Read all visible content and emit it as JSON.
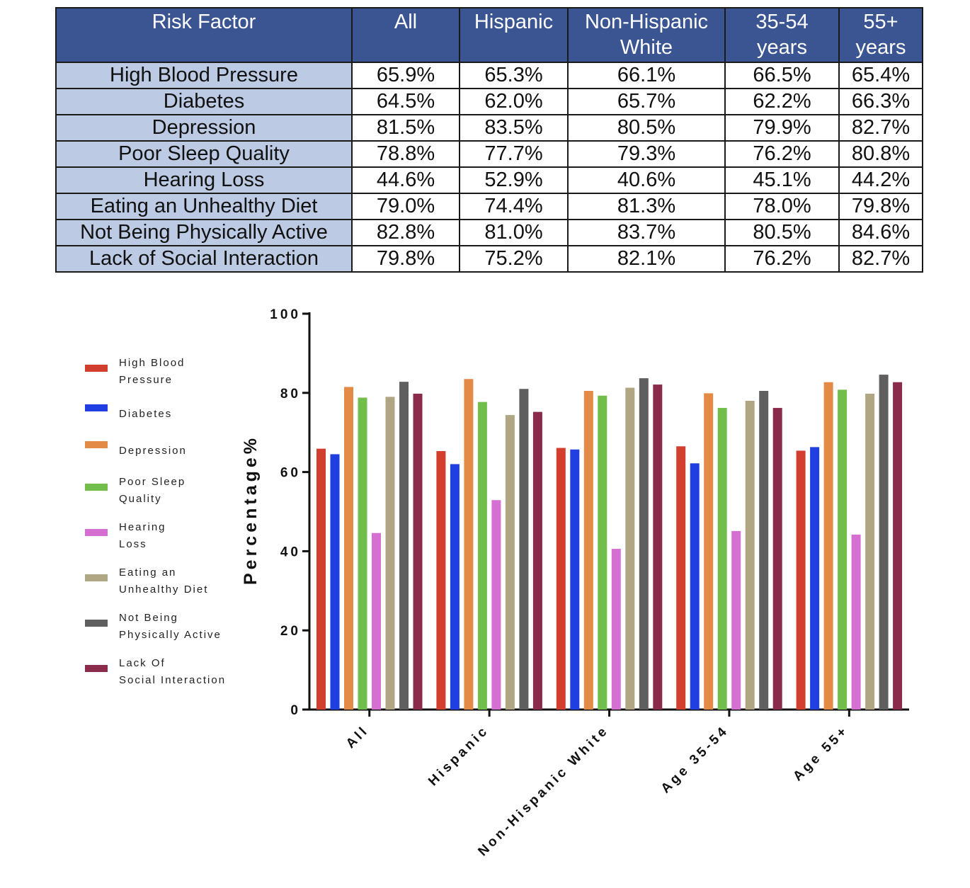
{
  "table": {
    "headers": [
      "Risk Factor",
      "All",
      "Hispanic",
      "Non-Hispanic\nWhite",
      "35-54\nyears",
      "55+\nyears"
    ],
    "rows": [
      {
        "factor": "High Blood Pressure",
        "values": [
          "65.9%",
          "65.3%",
          "66.1%",
          "66.5%",
          "65.4%"
        ]
      },
      {
        "factor": "Diabetes",
        "values": [
          "64.5%",
          "62.0%",
          "65.7%",
          "62.2%",
          "66.3%"
        ]
      },
      {
        "factor": "Depression",
        "values": [
          "81.5%",
          "83.5%",
          "80.5%",
          "79.9%",
          "82.7%"
        ]
      },
      {
        "factor": "Poor Sleep Quality",
        "values": [
          "78.8%",
          "77.7%",
          "79.3%",
          "76.2%",
          "80.8%"
        ]
      },
      {
        "factor": "Hearing Loss",
        "values": [
          "44.6%",
          "52.9%",
          "40.6%",
          "45.1%",
          "44.2%"
        ]
      },
      {
        "factor": "Eating an Unhealthy Diet",
        "values": [
          "79.0%",
          "74.4%",
          "81.3%",
          "78.0%",
          "79.8%"
        ]
      },
      {
        "factor": "Not Being Physically Active",
        "values": [
          "82.8%",
          "81.0%",
          "83.7%",
          "80.5%",
          "84.6%"
        ]
      },
      {
        "factor": "Lack of Social Interaction",
        "values": [
          "79.8%",
          "75.2%",
          "82.1%",
          "76.2%",
          "82.7%"
        ]
      }
    ]
  },
  "chart_data": {
    "type": "bar",
    "ylabel": "Percentage%",
    "ylim": [
      0,
      100
    ],
    "yticks": [
      0,
      20,
      40,
      60,
      80,
      100
    ],
    "grid": false,
    "legend_position": "left",
    "categories": [
      "All",
      "Hispanic",
      "Non-Hispanic White",
      "Age 35-54",
      "Age 55+"
    ],
    "series": [
      {
        "name": "High Blood Pressure",
        "legend_lines": [
          "High Blood",
          "Pressure"
        ],
        "color": "#d33f2f",
        "values": [
          65.9,
          65.3,
          66.1,
          66.5,
          65.4
        ]
      },
      {
        "name": "Diabetes",
        "legend_lines": [
          "Diabetes"
        ],
        "color": "#1f3fe0",
        "values": [
          64.5,
          62.0,
          65.7,
          62.2,
          66.3
        ]
      },
      {
        "name": "Depression",
        "legend_lines": [
          "Depression"
        ],
        "color": "#e38a47",
        "values": [
          81.5,
          83.5,
          80.5,
          79.9,
          82.7
        ]
      },
      {
        "name": "Poor Sleep Quality",
        "legend_lines": [
          "Poor Sleep",
          "Quality"
        ],
        "color": "#72be4d",
        "values": [
          78.8,
          77.7,
          79.3,
          76.2,
          80.8
        ]
      },
      {
        "name": "Hearing Loss",
        "legend_lines": [
          "Hearing",
          "Loss"
        ],
        "color": "#d56fd1",
        "values": [
          44.6,
          52.9,
          40.6,
          45.1,
          44.2
        ]
      },
      {
        "name": "Eating an Unhealthy Diet",
        "legend_lines": [
          "Eating an",
          "Unhealthy Diet"
        ],
        "color": "#b0a683",
        "values": [
          79.0,
          74.4,
          81.3,
          78.0,
          79.8
        ]
      },
      {
        "name": "Not Being Physically Active",
        "legend_lines": [
          "Not Being",
          "Physically Active"
        ],
        "color": "#5f5f5f",
        "values": [
          82.8,
          81.0,
          83.7,
          80.5,
          84.6
        ]
      },
      {
        "name": "Lack Of Social Interaction",
        "legend_lines": [
          "Lack Of",
          "Social Interaction"
        ],
        "color": "#8b2b4c",
        "values": [
          79.8,
          75.2,
          82.1,
          76.2,
          82.7
        ]
      }
    ]
  }
}
